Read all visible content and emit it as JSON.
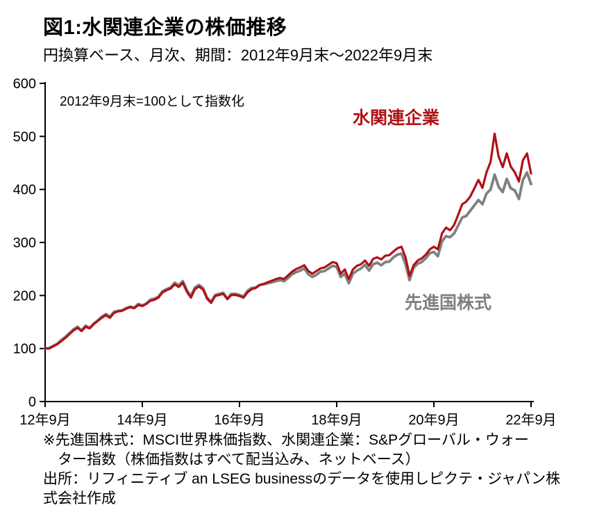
{
  "header": {
    "title": "図1:水関連企業の株価推移",
    "subtitle": "円換算ベース、月次、期間：2012年9月末～2022年9月末"
  },
  "chart_data": {
    "type": "line",
    "annotation": "2012年9月末=100として指数化",
    "x_unit": "month",
    "x_range": [
      "2012-09",
      "2022-09"
    ],
    "ylim": [
      0,
      600
    ],
    "yticks": [
      0,
      100,
      200,
      300,
      400,
      500,
      600
    ],
    "xticks": [
      {
        "i": 0,
        "label": "12年9月"
      },
      {
        "i": 24,
        "label": "14年9月"
      },
      {
        "i": 48,
        "label": "16年9月"
      },
      {
        "i": 72,
        "label": "18年9月"
      },
      {
        "i": 96,
        "label": "20年9月"
      },
      {
        "i": 120,
        "label": "22年9月"
      }
    ],
    "grid": false,
    "legend_position": "inline-labels",
    "series": [
      {
        "name": "水関連企業",
        "color": "#b01116",
        "values": [
          100,
          100,
          104,
          108,
          114,
          120,
          127,
          134,
          139,
          133,
          141,
          138,
          146,
          152,
          158,
          163,
          158,
          167,
          170,
          171,
          175,
          178,
          176,
          182,
          180,
          184,
          190,
          192,
          196,
          206,
          210,
          213,
          221,
          216,
          224,
          207,
          196,
          212,
          217,
          211,
          194,
          186,
          199,
          201,
          203,
          193,
          201,
          201,
          199,
          196,
          206,
          212,
          214,
          220,
          222,
          225,
          228,
          231,
          233,
          231,
          238,
          245,
          250,
          253,
          257,
          246,
          241,
          246,
          251,
          253,
          258,
          263,
          261,
          241,
          249,
          231,
          249,
          256,
          259,
          266,
          256,
          269,
          272,
          268,
          275,
          276,
          283,
          289,
          292,
          272,
          237,
          257,
          266,
          270,
          277,
          287,
          292,
          287,
          317,
          328,
          323,
          333,
          352,
          372,
          377,
          387,
          402,
          418,
          403,
          432,
          452,
          505,
          462,
          442,
          468,
          443,
          432,
          415,
          455,
          468,
          430
        ]
      },
      {
        "name": "先進国株式",
        "color": "#808080",
        "values": [
          100,
          101,
          105,
          109,
          116,
          122,
          129,
          136,
          141,
          134,
          143,
          139,
          147,
          153,
          160,
          165,
          160,
          169,
          171,
          172,
          176,
          179,
          177,
          184,
          181,
          185,
          192,
          194,
          198,
          208,
          212,
          215,
          224,
          219,
          227,
          210,
          199,
          215,
          220,
          214,
          196,
          188,
          201,
          203,
          205,
          194,
          203,
          203,
          201,
          198,
          209,
          214,
          215,
          220,
          221,
          223,
          225,
          227,
          229,
          227,
          233,
          240,
          244,
          247,
          251,
          240,
          235,
          239,
          245,
          246,
          251,
          256,
          254,
          235,
          241,
          223,
          241,
          247,
          251,
          258,
          247,
          259,
          262,
          257,
          263,
          264,
          272,
          277,
          279,
          259,
          229,
          252,
          260,
          263,
          270,
          280,
          282,
          274,
          302,
          312,
          310,
          317,
          332,
          347,
          350,
          360,
          370,
          380,
          372,
          392,
          400,
          428,
          405,
          395,
          420,
          402,
          398,
          382,
          418,
          432,
          410
        ]
      }
    ]
  },
  "notes": {
    "text": "※先進国株式：MSCI世界株価指数、水関連企業：S&Pグローバル・ウォー\n　ター指数（株価指数はすべて配当込み、ネットベース）\n出所：リフィニティブ an LSEG businessのデータを使用しピクテ・ジャパン株\n式会社作成"
  }
}
